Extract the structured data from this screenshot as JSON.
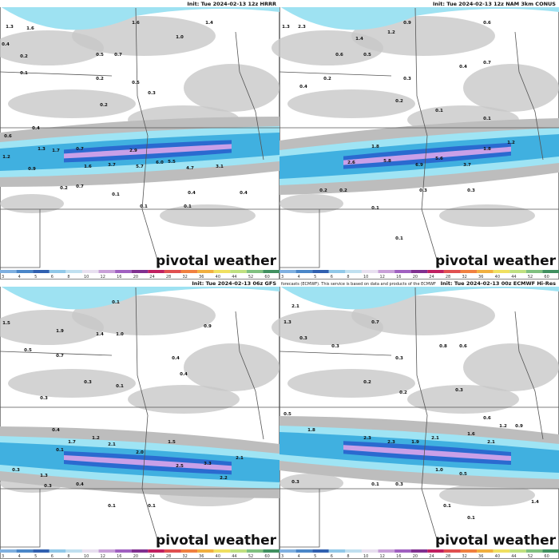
{
  "colorbar_labels": [
    "3",
    "4",
    "5",
    "6",
    "8",
    "10",
    "12",
    "16",
    "20",
    "24",
    "28",
    "32",
    "36",
    "40",
    "44",
    "52",
    "60"
  ],
  "watermark": "pivotal weather",
  "panels": [
    {
      "init": "Init: Tue 2024-02-13 12z HRRR",
      "values": [
        "1.3",
        "1.6",
        "1.6",
        "1.4",
        "1.0",
        "0.4",
        "0.5",
        "0.7",
        "0.2",
        "0.1",
        "0.2",
        "0.5",
        "0.3",
        "0.2",
        "0.4",
        "0.6",
        "1.3",
        "1.7",
        "0.7",
        "2.9",
        "1.2",
        "0.9",
        "1.6",
        "3.7",
        "5.7",
        "6.0",
        "5.5",
        "4.7",
        "3.1",
        "0.2",
        "0.7",
        "0.1",
        "0.4",
        "0.1",
        "0.1",
        "0.4"
      ]
    },
    {
      "init": "Init: Tue 2024-02-13 12z NAM 3km CONUS",
      "values": [
        "1.3",
        "2.3",
        "1.4",
        "1.2",
        "0.9",
        "0.6",
        "0.6",
        "0.5",
        "0.4",
        "0.7",
        "0.2",
        "0.3",
        "0.4",
        "0.2",
        "0.1",
        "0.1",
        "1.8",
        "2.6",
        "5.8",
        "6.9",
        "5.6",
        "3.7",
        "1.8",
        "1.2",
        "0.2",
        "0.2",
        "0.3",
        "0.1",
        "0.3",
        "0.1"
      ]
    },
    {
      "init": "Init: Tue 2024-02-13 06z GFS",
      "values": [
        "0.1",
        "1.5",
        "1.9",
        "1.4",
        "1.0",
        "0.9",
        "0.5",
        "0.7",
        "0.4",
        "0.3",
        "0.1",
        "0.3",
        "0.4",
        "0.1",
        "0.4",
        "1.7",
        "1.2",
        "2.1",
        "2.0",
        "1.5",
        "2.5",
        "3.3",
        "2.1",
        "2.2",
        "0.3",
        "1.3",
        "0.3",
        "0.4",
        "0.1",
        "0.1"
      ]
    },
    {
      "init": "Init: Tue 2024-02-13 00z ECMWF Hi-Res",
      "source": "forecasts (ECMWF). This service is based on data and products of the ECMWF",
      "values": [
        "2.1",
        "1.3",
        "0.7",
        "0.3",
        "0.3",
        "0.3",
        "0.8",
        "0.6",
        "0.2",
        "0.5",
        "0.2",
        "0.3",
        "0.6",
        "0.9",
        "1.8",
        "2.3",
        "2.3",
        "1.9",
        "2.1",
        "1.6",
        "1.2",
        "2.1",
        "1.0",
        "0.5",
        "0.1",
        "0.3",
        "0.3",
        "0.1",
        "0.1",
        "1.4"
      ]
    }
  ]
}
